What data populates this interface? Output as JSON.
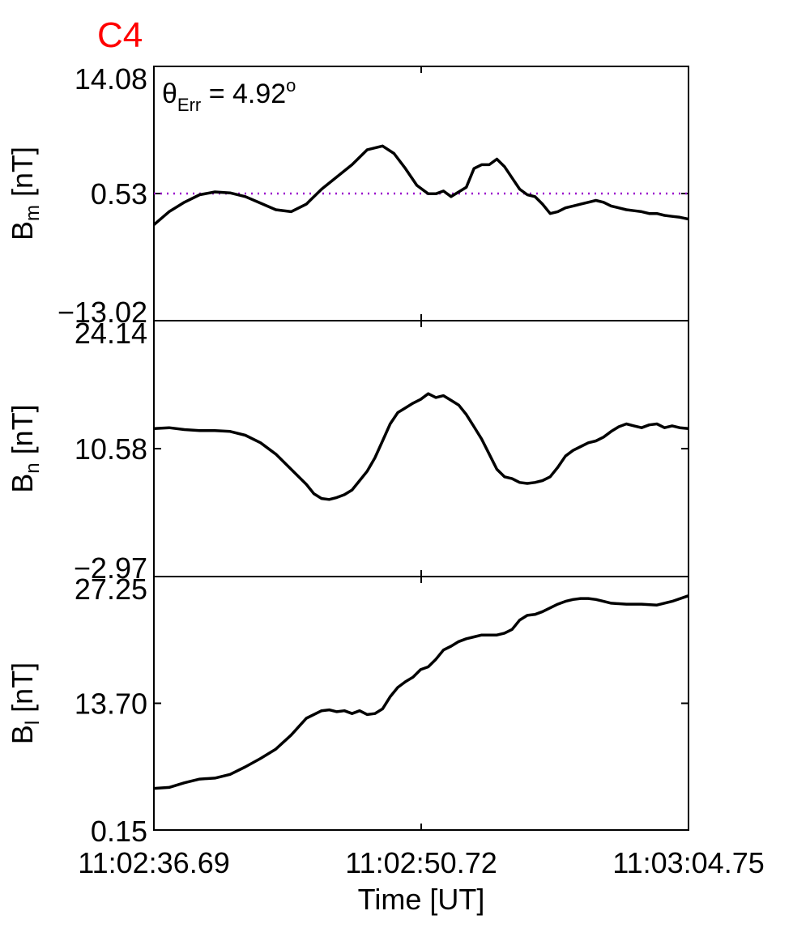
{
  "title": "C4",
  "chart_data": [
    {
      "type": "line",
      "panel": "Bm",
      "ylabel": {
        "main": "B",
        "sub": "m",
        "unit": " [nT]"
      },
      "ylim": [
        -13.02,
        14.08
      ],
      "yticks": [
        "14.08",
        "0.53",
        "−13.02"
      ],
      "ytick_values": [
        14.08,
        0.53,
        -13.02
      ],
      "annotation": {
        "theta": "θ",
        "sub": "Err",
        "eq": " =  4.92",
        "sup": "o"
      },
      "reference_line": {
        "y": 0.53,
        "color": "#9900cc",
        "style": "dotted"
      },
      "x": [
        0,
        0.8,
        1.6,
        2.4,
        3.2,
        4.0,
        4.8,
        5.6,
        6.4,
        7.2,
        8.0,
        8.8,
        9.6,
        10.4,
        11.2,
        12.0,
        12.6,
        13.2,
        13.8,
        14.4,
        14.8,
        15.2,
        15.6,
        16.0,
        16.4,
        16.8,
        17.2,
        17.6,
        18.0,
        18.4,
        18.8,
        19.2,
        19.6,
        20.0,
        20.4,
        20.8,
        21.2,
        21.6,
        22.0,
        22.4,
        22.8,
        23.2,
        23.6,
        24.0,
        24.4,
        24.8,
        25.2,
        25.6,
        26.0,
        26.4,
        26.8,
        27.2,
        27.6,
        28.06
      ],
      "values": [
        -2.8,
        -1.4,
        -0.4,
        0.4,
        0.7,
        0.6,
        0.2,
        -0.5,
        -1.2,
        -1.4,
        -0.6,
        1.0,
        2.3,
        3.6,
        5.2,
        5.6,
        4.8,
        3.2,
        1.4,
        0.5,
        0.5,
        0.8,
        0.2,
        0.7,
        1.2,
        3.2,
        3.6,
        3.6,
        4.2,
        3.4,
        2.2,
        1.0,
        0.4,
        0.2,
        -0.6,
        -1.6,
        -1.4,
        -1.0,
        -0.8,
        -0.6,
        -0.4,
        -0.2,
        -0.4,
        -0.8,
        -1.0,
        -1.2,
        -1.3,
        -1.4,
        -1.6,
        -1.6,
        -1.8,
        -1.9,
        -2.0,
        -2.2
      ],
      "color": "#000000"
    },
    {
      "type": "line",
      "panel": "Bn",
      "ylabel": {
        "main": "B",
        "sub": "n",
        "unit": " [nT]"
      },
      "ylim": [
        -2.97,
        24.14
      ],
      "yticks": [
        "24.14",
        "10.58",
        "−2.97"
      ],
      "ytick_values": [
        24.14,
        10.58,
        -2.97
      ],
      "x": [
        0,
        0.8,
        1.6,
        2.4,
        3.2,
        4.0,
        4.8,
        5.6,
        6.4,
        7.2,
        8.0,
        8.4,
        8.8,
        9.2,
        9.6,
        10.0,
        10.4,
        10.8,
        11.2,
        11.6,
        12.0,
        12.4,
        12.8,
        13.2,
        13.6,
        14.0,
        14.4,
        14.8,
        15.2,
        15.6,
        16.0,
        16.4,
        16.8,
        17.2,
        17.6,
        18.0,
        18.4,
        18.8,
        19.2,
        19.6,
        20.0,
        20.4,
        20.8,
        21.2,
        21.6,
        22.0,
        22.4,
        22.8,
        23.2,
        23.6,
        24.0,
        24.4,
        24.8,
        25.2,
        25.6,
        26.0,
        26.4,
        26.8,
        27.2,
        27.6,
        28.06
      ],
      "values": [
        12.7,
        12.8,
        12.6,
        12.5,
        12.5,
        12.4,
        12.0,
        11.2,
        10.0,
        8.4,
        6.8,
        5.8,
        5.3,
        5.2,
        5.4,
        5.7,
        6.2,
        7.2,
        8.2,
        9.6,
        11.4,
        13.2,
        14.4,
        14.9,
        15.4,
        15.8,
        16.4,
        16.0,
        16.2,
        15.7,
        15.2,
        14.2,
        12.9,
        11.6,
        10.0,
        8.4,
        7.6,
        7.4,
        7.0,
        6.9,
        7.0,
        7.2,
        7.6,
        8.6,
        9.8,
        10.4,
        10.8,
        11.2,
        11.4,
        11.8,
        12.4,
        12.9,
        13.2,
        13.0,
        12.8,
        13.1,
        13.2,
        12.8,
        13.0,
        12.8,
        12.7
      ],
      "color": "#000000"
    },
    {
      "type": "line",
      "panel": "Bl",
      "ylabel": {
        "main": "B",
        "sub": "l",
        "unit": " [nT]"
      },
      "ylim": [
        0.15,
        27.25
      ],
      "yticks": [
        "27.25",
        "13.70",
        "0.15"
      ],
      "ytick_values": [
        27.25,
        13.7,
        0.15
      ],
      "xticks": [
        "11:02:36.69",
        "11:02:50.72",
        "11:03:04.75"
      ],
      "xtick_values": [
        0,
        14.03,
        28.06
      ],
      "xlabel": "Time [UT]",
      "x": [
        0,
        0.8,
        1.6,
        2.4,
        3.2,
        4.0,
        4.8,
        5.6,
        6.4,
        7.2,
        8.0,
        8.8,
        9.2,
        9.6,
        10.0,
        10.4,
        10.8,
        11.2,
        11.6,
        12.0,
        12.4,
        12.8,
        13.2,
        13.6,
        14.0,
        14.4,
        14.8,
        15.2,
        15.6,
        16.0,
        16.4,
        16.8,
        17.2,
        17.6,
        18.0,
        18.4,
        18.8,
        19.2,
        19.6,
        20.0,
        20.4,
        20.8,
        21.2,
        21.6,
        22.0,
        22.4,
        22.8,
        23.2,
        23.6,
        24.0,
        24.8,
        25.6,
        26.4,
        27.2,
        28.06
      ],
      "values": [
        4.6,
        4.7,
        5.2,
        5.6,
        5.7,
        6.1,
        6.9,
        7.8,
        8.8,
        10.3,
        12.1,
        12.9,
        13.0,
        12.8,
        12.9,
        12.6,
        12.9,
        12.5,
        12.6,
        13.1,
        14.4,
        15.4,
        16.0,
        16.5,
        17.3,
        17.6,
        18.4,
        19.4,
        19.8,
        20.3,
        20.6,
        20.8,
        21.0,
        21.0,
        21.0,
        21.2,
        21.6,
        22.6,
        23.1,
        23.2,
        23.5,
        23.9,
        24.3,
        24.6,
        24.8,
        24.9,
        24.9,
        24.8,
        24.6,
        24.4,
        24.3,
        24.3,
        24.2,
        24.6,
        25.2
      ],
      "color": "#000000"
    }
  ]
}
